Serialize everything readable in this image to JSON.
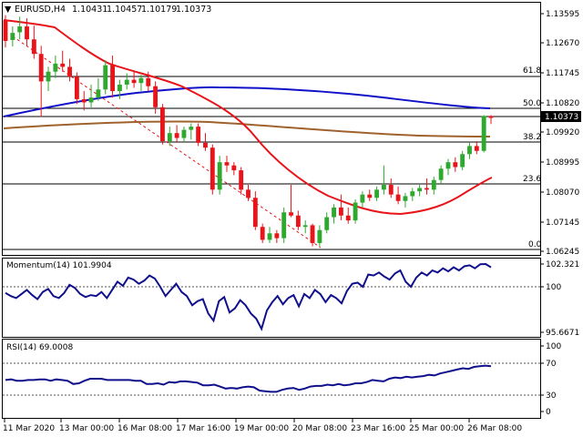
{
  "header": {
    "triangle": "▼",
    "symbol": "EURUSD,H4",
    "open": "1.10431",
    "high": "1.10457",
    "low": "1.10179",
    "close": "1.10373"
  },
  "colors": {
    "bull": "#2ea82e",
    "bear": "#e8141a",
    "sma_fast": "#e8141a",
    "sma_slow": "#1010c8",
    "sma_long": "#a0622d",
    "indicator": "#10108c",
    "price_tag_bg": "#000000"
  },
  "price_axis": {
    "ticks": [
      "1.13595",
      "1.12670",
      "1.11745",
      "1.10820",
      "1.09920",
      "1.08995",
      "1.08070",
      "1.07145",
      "1.06245"
    ],
    "current_price": "1.10373"
  },
  "fib_labels": [
    "61.8",
    "50.0",
    "38.2",
    "23.6",
    "0.0"
  ],
  "momentum": {
    "title": "Momentum(14) 101.9904",
    "ticks": [
      "102.321",
      "100",
      "95.6671"
    ]
  },
  "rsi": {
    "title": "RSI(14) 69.0008",
    "ticks": [
      "100",
      "70",
      "30",
      "0"
    ]
  },
  "time_axis": {
    "labels": [
      "11 Mar 2020",
      "13 Mar 00:00",
      "16 Mar 08:00",
      "17 Mar 16:00",
      "19 Mar 00:00",
      "20 Mar 08:00",
      "23 Mar 16:00",
      "25 Mar 00:00",
      "26 Mar 08:00"
    ]
  },
  "chart_data": {
    "type": "candlestick",
    "fib_levels": {
      "61.8": 1.115,
      "50.0": 1.1065,
      "38.2": 1.0977,
      "23.6": 1.0871,
      "0.0": 1.0637
    },
    "candles": [
      [
        1.1339,
        1.1355,
        1.1255,
        1.1275
      ],
      [
        1.1278,
        1.132,
        1.1258,
        1.13
      ],
      [
        1.1302,
        1.135,
        1.128,
        1.132
      ],
      [
        1.132,
        1.1345,
        1.126,
        1.128
      ],
      [
        1.128,
        1.1322,
        1.122,
        1.1235
      ],
      [
        1.1235,
        1.126,
        1.104,
        1.115
      ],
      [
        1.115,
        1.1195,
        1.112,
        1.118
      ],
      [
        1.118,
        1.123,
        1.116,
        1.1205
      ],
      [
        1.1205,
        1.1245,
        1.118,
        1.1195
      ],
      [
        1.1195,
        1.122,
        1.115,
        1.1165
      ],
      [
        1.1165,
        1.1178,
        1.108,
        1.1095
      ],
      [
        1.1095,
        1.112,
        1.106,
        1.1085
      ],
      [
        1.1085,
        1.114,
        1.107,
        1.11
      ],
      [
        1.11,
        1.116,
        1.109,
        1.1125
      ],
      [
        1.1125,
        1.1215,
        1.111,
        1.12
      ],
      [
        1.12,
        1.123,
        1.11,
        1.112
      ],
      [
        1.112,
        1.1155,
        1.1095,
        1.114
      ],
      [
        1.114,
        1.1175,
        1.1125,
        1.1155
      ],
      [
        1.1155,
        1.118,
        1.113,
        1.1145
      ],
      [
        1.1145,
        1.117,
        1.112,
        1.116
      ],
      [
        1.116,
        1.118,
        1.112,
        1.1135
      ],
      [
        1.1135,
        1.115,
        1.105,
        1.107
      ],
      [
        1.107,
        1.108,
        1.0955,
        1.0965
      ],
      [
        1.0965,
        1.101,
        1.095,
        1.099
      ],
      [
        1.099,
        1.1015,
        1.096,
        1.0975
      ],
      [
        1.0975,
        1.101,
        1.0965,
        1.1
      ],
      [
        1.1,
        1.102,
        1.097,
        1.101
      ],
      [
        1.101,
        1.102,
        1.095,
        1.096
      ],
      [
        1.096,
        1.099,
        1.0935,
        1.0945
      ],
      [
        1.0945,
        1.0955,
        1.08,
        1.0815
      ],
      [
        1.0815,
        1.092,
        1.08,
        1.09
      ],
      [
        1.09,
        1.092,
        1.087,
        1.089
      ],
      [
        1.089,
        1.09,
        1.086,
        1.0875
      ],
      [
        1.0875,
        1.0885,
        1.08,
        1.0815
      ],
      [
        1.0815,
        1.083,
        1.078,
        1.079
      ],
      [
        1.079,
        1.081,
        1.069,
        1.07
      ],
      [
        1.07,
        1.071,
        1.065,
        1.066
      ],
      [
        1.066,
        1.07,
        1.065,
        1.068
      ],
      [
        1.068,
        1.069,
        1.065,
        1.0665
      ],
      [
        1.0665,
        1.076,
        1.065,
        1.0745
      ],
      [
        1.0745,
        1.083,
        1.073,
        1.0735
      ],
      [
        1.0735,
        1.075,
        1.069,
        1.07
      ],
      [
        1.07,
        1.072,
        1.068,
        1.0705
      ],
      [
        1.0705,
        1.071,
        1.064,
        1.065
      ],
      [
        1.065,
        1.0705,
        1.064,
        1.069
      ],
      [
        1.069,
        1.0745,
        1.068,
        1.073
      ],
      [
        1.073,
        1.077,
        1.071,
        1.076
      ],
      [
        1.076,
        1.08,
        1.072,
        1.0735
      ],
      [
        1.0735,
        1.076,
        1.071,
        1.072
      ],
      [
        1.072,
        1.0785,
        1.071,
        1.0775
      ],
      [
        1.0775,
        1.081,
        1.076,
        1.08
      ],
      [
        1.08,
        1.0815,
        1.078,
        1.079
      ],
      [
        1.079,
        1.0825,
        1.078,
        1.0815
      ],
      [
        1.0815,
        1.089,
        1.08,
        1.083
      ],
      [
        1.083,
        1.085,
        1.079,
        1.08
      ],
      [
        1.08,
        1.0825,
        1.077,
        1.078
      ],
      [
        1.078,
        1.0805,
        1.076,
        1.0795
      ],
      [
        1.0795,
        1.082,
        1.078,
        1.081
      ],
      [
        1.081,
        1.083,
        1.0795,
        1.082
      ],
      [
        1.082,
        1.085,
        1.08,
        1.0815
      ],
      [
        1.0815,
        1.0855,
        1.08,
        1.0845
      ],
      [
        1.0845,
        1.089,
        1.083,
        1.088
      ],
      [
        1.088,
        1.091,
        1.086,
        1.09
      ],
      [
        1.09,
        1.0915,
        1.087,
        1.0885
      ],
      [
        1.0885,
        1.0935,
        1.0875,
        1.0925
      ],
      [
        1.0925,
        1.096,
        1.091,
        1.095
      ],
      [
        1.095,
        1.0965,
        1.0925,
        1.0935
      ],
      [
        1.0935,
        1.1046,
        1.093,
        1.1043
      ],
      [
        1.1043,
        1.1046,
        1.1018,
        1.1037
      ]
    ],
    "momentum": {
      "ylim": [
        95.6671,
        102.321
      ],
      "values": [
        99.5,
        99.2,
        99.0,
        99.4,
        99.8,
        99.3,
        98.9,
        99.6,
        99.9,
        99.2,
        99.0,
        99.5,
        100.3,
        100.0,
        99.4,
        99.1,
        99.3,
        99.2,
        99.6,
        99.0,
        99.8,
        100.6,
        100.2,
        101.0,
        100.8,
        100.4,
        100.7,
        101.2,
        100.9,
        100.1,
        99.2,
        99.8,
        100.4,
        99.6,
        99.2,
        98.3,
        98.7,
        98.9,
        97.5,
        96.8,
        98.7,
        99.1,
        97.6,
        98.0,
        98.8,
        98.3,
        97.5,
        97.0,
        96.0,
        97.8,
        98.6,
        99.2,
        98.4,
        99.0,
        99.3,
        98.2,
        99.4,
        99.0,
        99.8,
        99.4,
        98.6,
        99.3,
        99.0,
        98.5,
        99.7,
        100.4,
        100.5,
        100.1,
        101.3,
        101.2,
        101.5,
        101.1,
        100.8,
        101.4,
        101.7,
        100.6,
        100.1,
        101.0,
        101.5,
        101.2,
        101.7,
        101.5,
        101.9,
        101.6,
        102.0,
        101.7,
        102.1,
        102.2,
        101.9,
        102.3,
        102.32,
        102.0
      ]
    },
    "rsi": {
      "ylim": [
        0,
        100
      ],
      "values": [
        48,
        49,
        47,
        47,
        48,
        48,
        49,
        49,
        47,
        49,
        48,
        47,
        42,
        43,
        47,
        50,
        50,
        50,
        48,
        48,
        48,
        48,
        48,
        47,
        47,
        42,
        42,
        43,
        41,
        45,
        44,
        46,
        46,
        45,
        44,
        40,
        40,
        41,
        38,
        35,
        36,
        35,
        37,
        38,
        37,
        32,
        31,
        30,
        30,
        33,
        35,
        36,
        33,
        35,
        38,
        39,
        39,
        41,
        40,
        42,
        40,
        41,
        43,
        43,
        45,
        48,
        47,
        46,
        50,
        52,
        51,
        53,
        52,
        53,
        54,
        56,
        55,
        58,
        60,
        62,
        64,
        66,
        65,
        68,
        69,
        70,
        69
      ]
    }
  }
}
